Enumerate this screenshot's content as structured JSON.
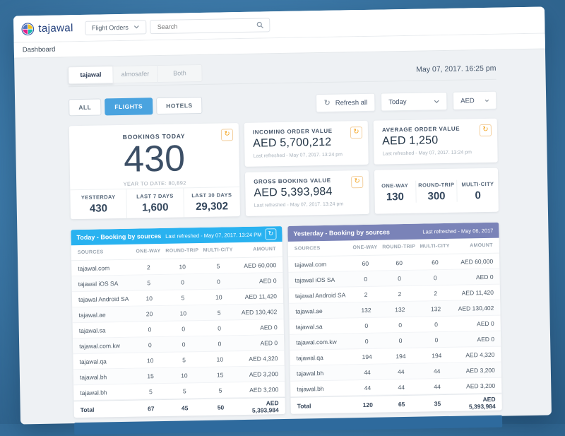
{
  "navbar": {
    "brand": "tajawal",
    "module_select": "Flight Orders",
    "search_placeholder": "Search"
  },
  "breadcrumb": "Dashboard",
  "header": {
    "tabs": [
      {
        "label": "tajawal",
        "active": true
      },
      {
        "label": "almosafer",
        "active": false
      },
      {
        "label": "Both",
        "active": false
      }
    ],
    "datetime": "May 07, 2017. 16:25 pm"
  },
  "filters": {
    "buttons": [
      {
        "label": "ALL",
        "active": false
      },
      {
        "label": "FLIGHTS",
        "active": true
      },
      {
        "label": "HOTELS",
        "active": false
      }
    ],
    "refresh_all_label": "Refresh all",
    "period_select": "Today",
    "currency_select": "AED"
  },
  "summary": {
    "bookings_today": {
      "title": "BOOKINGS TODAY",
      "value": "430",
      "year_to_date": "YEAR TO DATE: 80,892",
      "stats": [
        {
          "label": "YESTERDAY",
          "value": "430"
        },
        {
          "label": "LAST 7 DAYS",
          "value": "1,600"
        },
        {
          "label": "LAST 30 DAYS",
          "value": "29,302"
        }
      ]
    },
    "incoming_order_value": {
      "title": "INCOMING ORDER VALUE",
      "value": "AED 5,700,212",
      "refreshed": "Last refreshed - May 07, 2017. 13:24 pm"
    },
    "average_order_value": {
      "title": "AVERAGE ORDER VALUE",
      "value": "AED 1,250",
      "refreshed": "Last refreshed - May 07, 2017. 13:24 pm"
    },
    "gross_booking_value": {
      "title": "GROSS BOOKING VALUE",
      "value": "AED 5,393,984",
      "refreshed": "Last refreshed - May 07, 2017. 13:24 pm"
    },
    "trip_types": [
      {
        "label": "ONE-WAY",
        "value": "130"
      },
      {
        "label": "ROUND-TRIP",
        "value": "300"
      },
      {
        "label": "MULTI-CITY",
        "value": "0"
      }
    ]
  },
  "tables": [
    {
      "title": "Today - Booking by sources",
      "refreshed": "Last refreshed - May 07, 2017. 13:24 PM",
      "has_refresh_button": true,
      "header_color": "#29b2f0",
      "columns": [
        "SOURCES",
        "ONE-WAY",
        "ROUND-TRIP",
        "MULTI-CITY",
        "AMOUNT"
      ],
      "rows": [
        [
          "tajawal.com",
          "2",
          "10",
          "5",
          "AED 60,000"
        ],
        [
          "tajawal iOS SA",
          "5",
          "0",
          "0",
          "AED 0"
        ],
        [
          "tajawal Android SA",
          "10",
          "5",
          "10",
          "AED 11,420"
        ],
        [
          "tajawal.ae",
          "20",
          "10",
          "5",
          "AED 130,402"
        ],
        [
          "tajawal.sa",
          "0",
          "0",
          "0",
          "AED 0"
        ],
        [
          "tajawal.com.kw",
          "0",
          "0",
          "0",
          "AED 0"
        ],
        [
          "tajawal.qa",
          "10",
          "5",
          "10",
          "AED 4,320"
        ],
        [
          "tajawal.bh",
          "15",
          "10",
          "15",
          "AED 3,200"
        ],
        [
          "tajawal.bh",
          "5",
          "5",
          "5",
          "AED 3,200"
        ]
      ],
      "total": [
        "Total",
        "67",
        "45",
        "50",
        "AED 5,393,984"
      ]
    },
    {
      "title": "Yesterday - Booking by sources",
      "refreshed": "Last refreshed - May 06, 2017",
      "has_refresh_button": false,
      "header_color": "#7a83b8",
      "columns": [
        "SOURCES",
        "ONE-WAY",
        "ROUND-TRIP",
        "MULTI-CITY",
        "AMOUNT"
      ],
      "rows": [
        [
          "tajawal.com",
          "60",
          "60",
          "60",
          "AED 60,000"
        ],
        [
          "tajawal iOS SA",
          "0",
          "0",
          "0",
          "AED 0"
        ],
        [
          "tajawal Android SA",
          "2",
          "2",
          "2",
          "AED 11,420"
        ],
        [
          "tajawal.ae",
          "132",
          "132",
          "132",
          "AED 130,402"
        ],
        [
          "tajawal.sa",
          "0",
          "0",
          "0",
          "AED 0"
        ],
        [
          "tajawal.com.kw",
          "0",
          "0",
          "0",
          "AED 0"
        ],
        [
          "tajawal.qa",
          "194",
          "194",
          "194",
          "AED 4,320"
        ],
        [
          "tajawal.bh",
          "44",
          "44",
          "44",
          "AED 3,200"
        ],
        [
          "tajawal.bh",
          "44",
          "44",
          "44",
          "AED 3,200"
        ]
      ],
      "total": [
        "Total",
        "120",
        "65",
        "35",
        "AED 5,393,984"
      ]
    }
  ],
  "icons": {
    "refresh_glyph": "↻"
  },
  "colors": {
    "accent_blue": "#4aa3df",
    "table_header_today": "#29b2f0",
    "table_header_yesterday": "#7a83b8",
    "refresh_orange": "#f5a623",
    "footer_bar": "#2e6a9d",
    "page_bg": "#eef1f4"
  }
}
